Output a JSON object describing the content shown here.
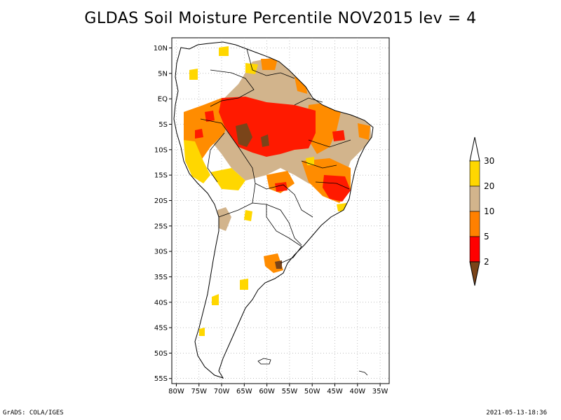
{
  "title": "GLDAS Soil Moisture Percentile NOV2015 lev = 4",
  "footer": {
    "credit": "GrADS: COLA/IGES",
    "timestamp": "2021-05-13-18:36"
  },
  "map": {
    "lat_ticks": [
      "10N",
      "5N",
      "EQ",
      "5S",
      "10S",
      "15S",
      "20S",
      "25S",
      "30S",
      "35S",
      "40S",
      "45S",
      "50S",
      "55S"
    ],
    "lon_ticks": [
      "80W",
      "75W",
      "70W",
      "65W",
      "60W",
      "55W",
      "50W",
      "45W",
      "40W",
      "35W"
    ],
    "lat_range": [
      -56,
      12
    ],
    "lon_range": [
      -81,
      -33
    ],
    "grid_step_deg": 5
  },
  "legend": {
    "labels": [
      "2",
      "5",
      "10",
      "20",
      "30"
    ],
    "colors": {
      "below_2": "#7a4419",
      "2_5": "#ff0000",
      "5_10": "#ff8000",
      "10_20": "#d2b48c",
      "20_30": "#ffd700",
      "above_30": "#ffffff"
    }
  },
  "colors": {
    "brown": "#7a4419",
    "red": "#ff1a00",
    "orange": "#ff8c00",
    "tan": "#d2b48c",
    "yellow": "#ffd700",
    "outline": "#000000",
    "grid": "#999999"
  }
}
